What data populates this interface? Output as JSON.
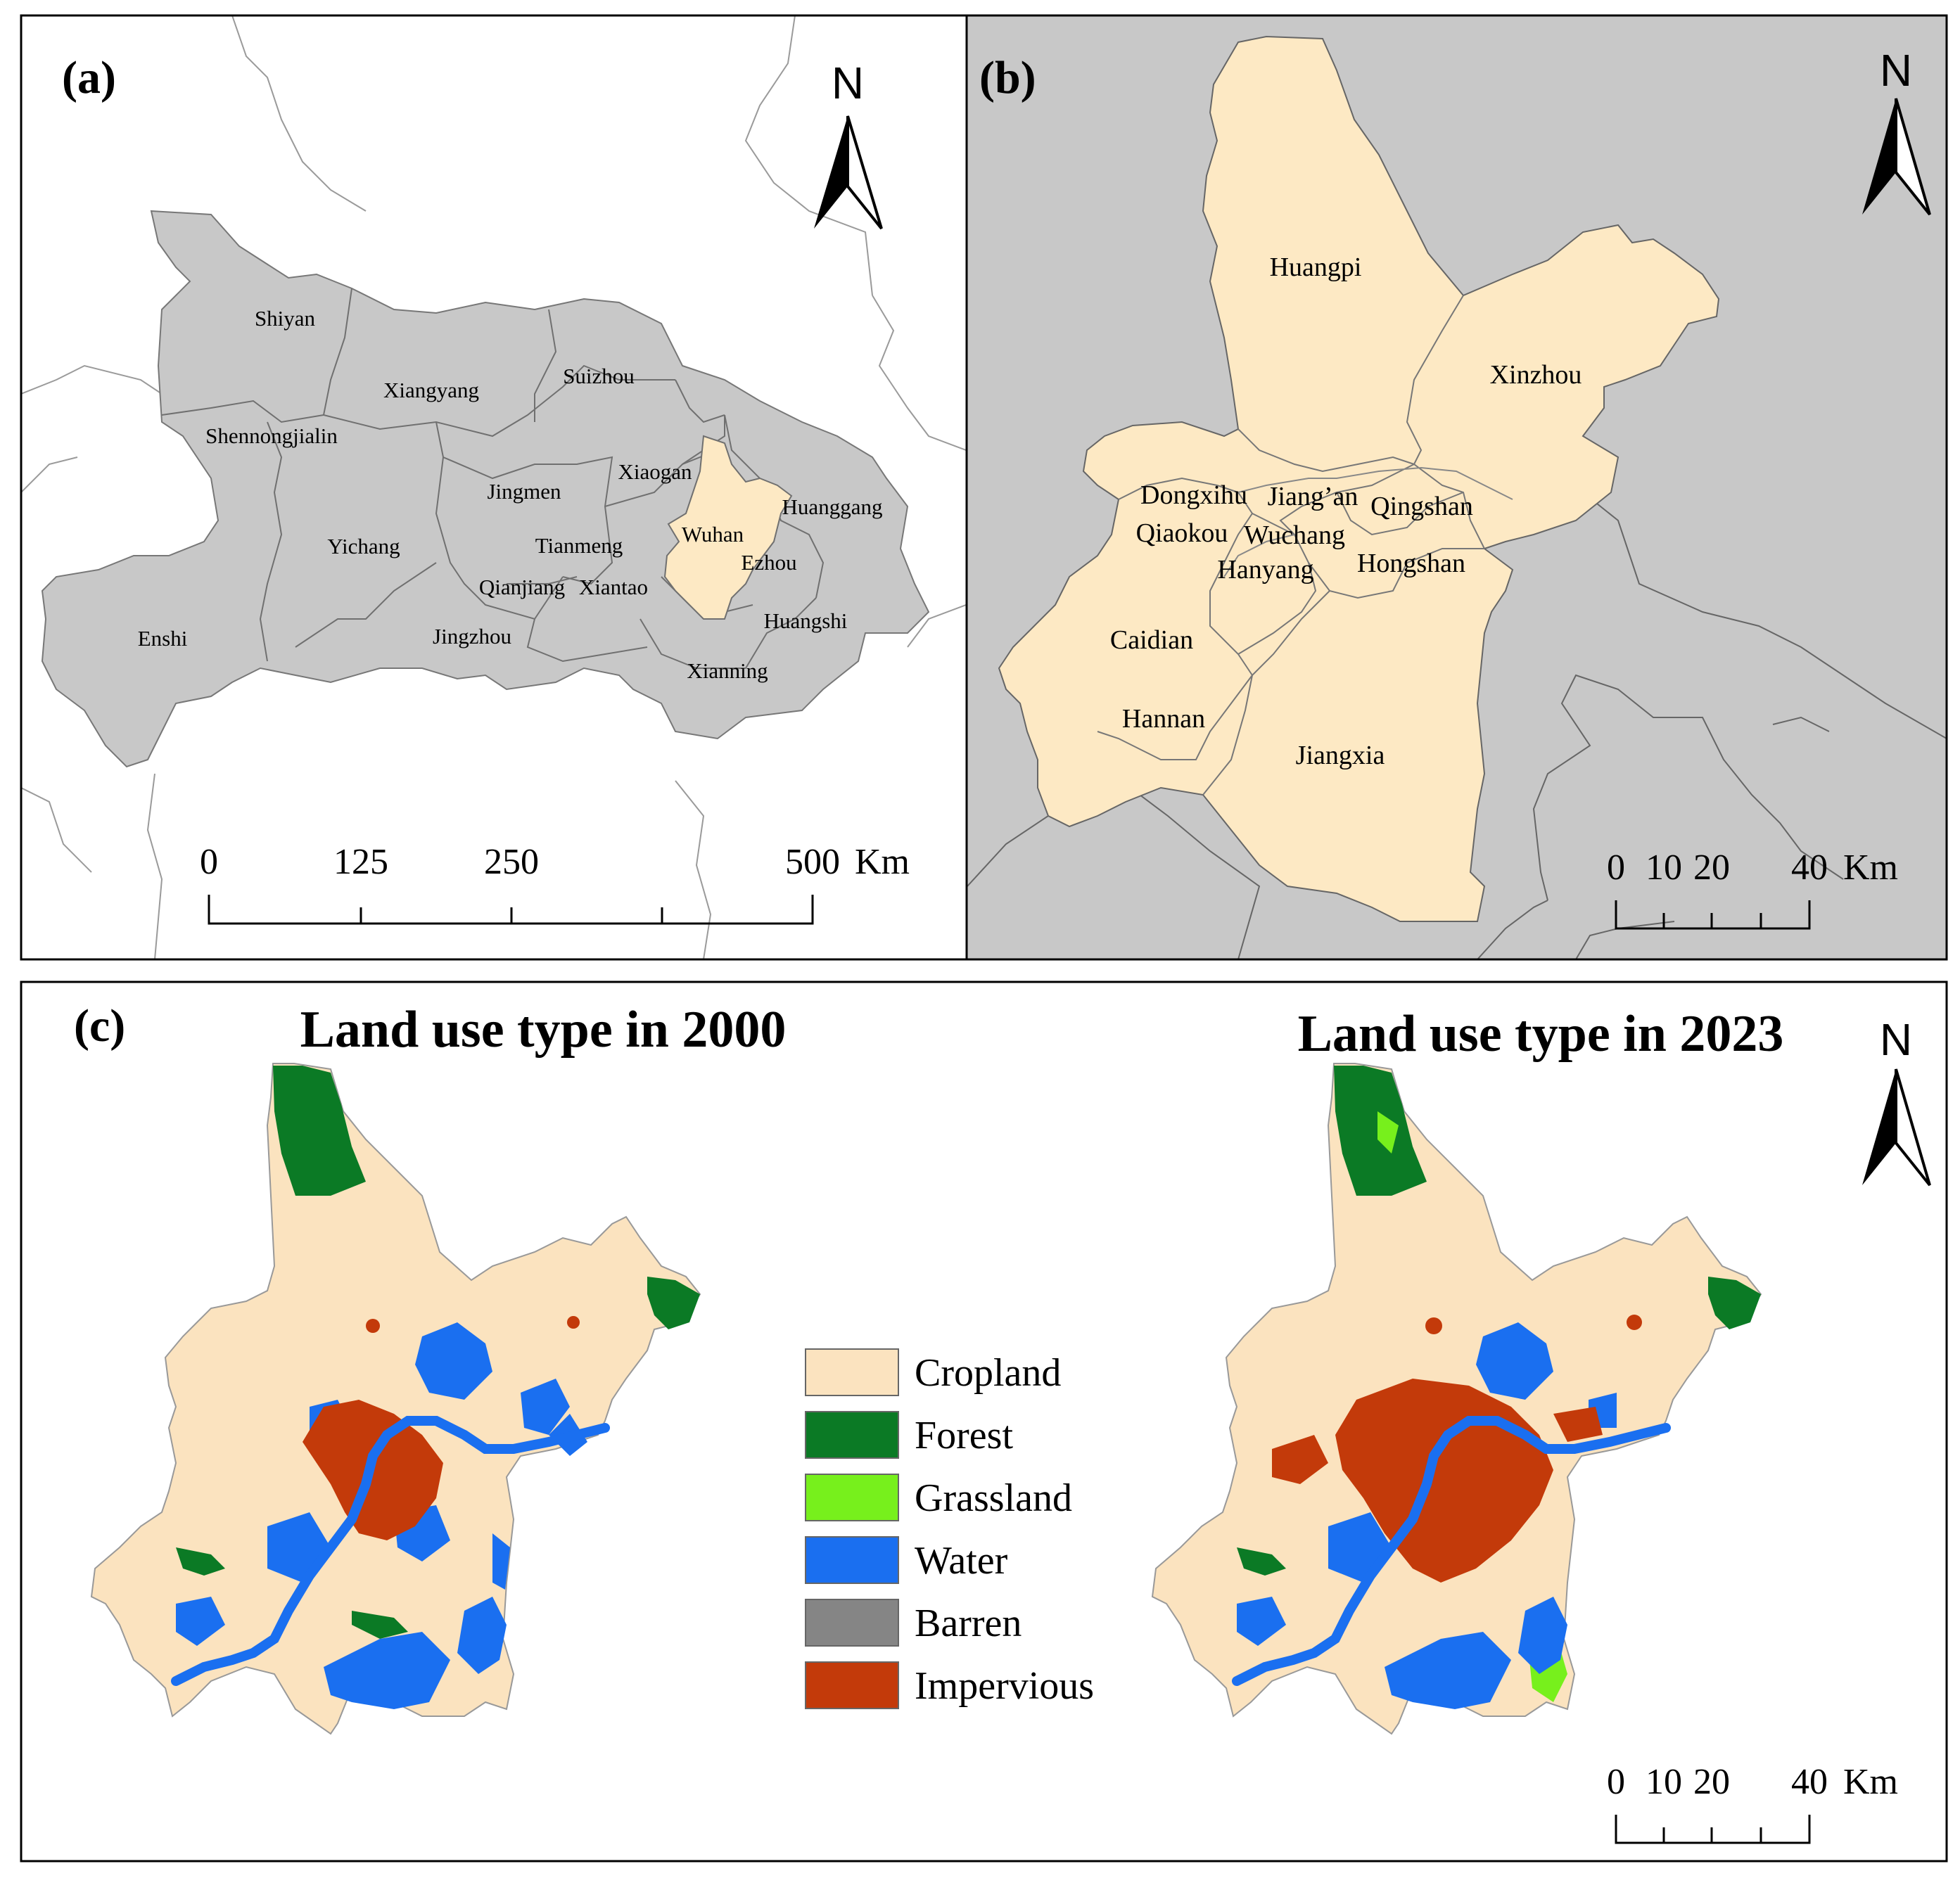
{
  "panels": {
    "a": {
      "label": "(a)",
      "region_labels": [
        "Shiyan",
        "Xiangyang",
        "Suizhou",
        "Shennongjialin",
        "Xiaogan",
        "Jingmen",
        "Huanggang",
        "Yichang",
        "Tianmeng",
        "Wuhan",
        "Ezhou",
        "Qianjiang",
        "Xiantao",
        "Huangshi",
        "Enshi",
        "Jingzhou",
        "Xianning"
      ],
      "highlight": "Wuhan",
      "north": "N",
      "scale": {
        "ticks": [
          "0",
          "125",
          "250",
          "500"
        ],
        "unit": "Km"
      }
    },
    "b": {
      "label": "(b)",
      "district_labels": [
        "Huangpi",
        "Xinzhou",
        "Dongxihu",
        "Jiang’an",
        "Qingshan",
        "Qiaokou",
        "Wuchang",
        "Hanyang",
        "Hongshan",
        "Caidian",
        "Hannan",
        "Jiangxia"
      ],
      "north": "N",
      "scale": {
        "ticks": [
          "0",
          "10",
          "20",
          "40"
        ],
        "unit": "Km"
      }
    },
    "c": {
      "label": "(c)",
      "title_left": "Land use type in 2000",
      "title_right": "Land use type in 2023",
      "north": "N",
      "scale": {
        "ticks": [
          "0",
          "10",
          "20",
          "40"
        ],
        "unit": "Km"
      },
      "legend": [
        {
          "label": "Cropland",
          "color": "#fbe3bf"
        },
        {
          "label": "Forest",
          "color": "#0b7a25"
        },
        {
          "label": "Grassland",
          "color": "#77f01c"
        },
        {
          "label": "Water",
          "color": "#1a6ff0"
        },
        {
          "label": "Barren",
          "color": "#858585"
        },
        {
          "label": "Impervious",
          "color": "#c33a0a"
        }
      ]
    }
  },
  "colors": {
    "province_gray": "#c8c8c8",
    "wuhan_fill": "#fde9c4",
    "background_gray": "#c8c8c8",
    "cropland": "#fbe3bf",
    "forest": "#0b7a25",
    "water": "#1a6ff0",
    "impervious": "#c33a0a",
    "grassland": "#77f01c"
  }
}
